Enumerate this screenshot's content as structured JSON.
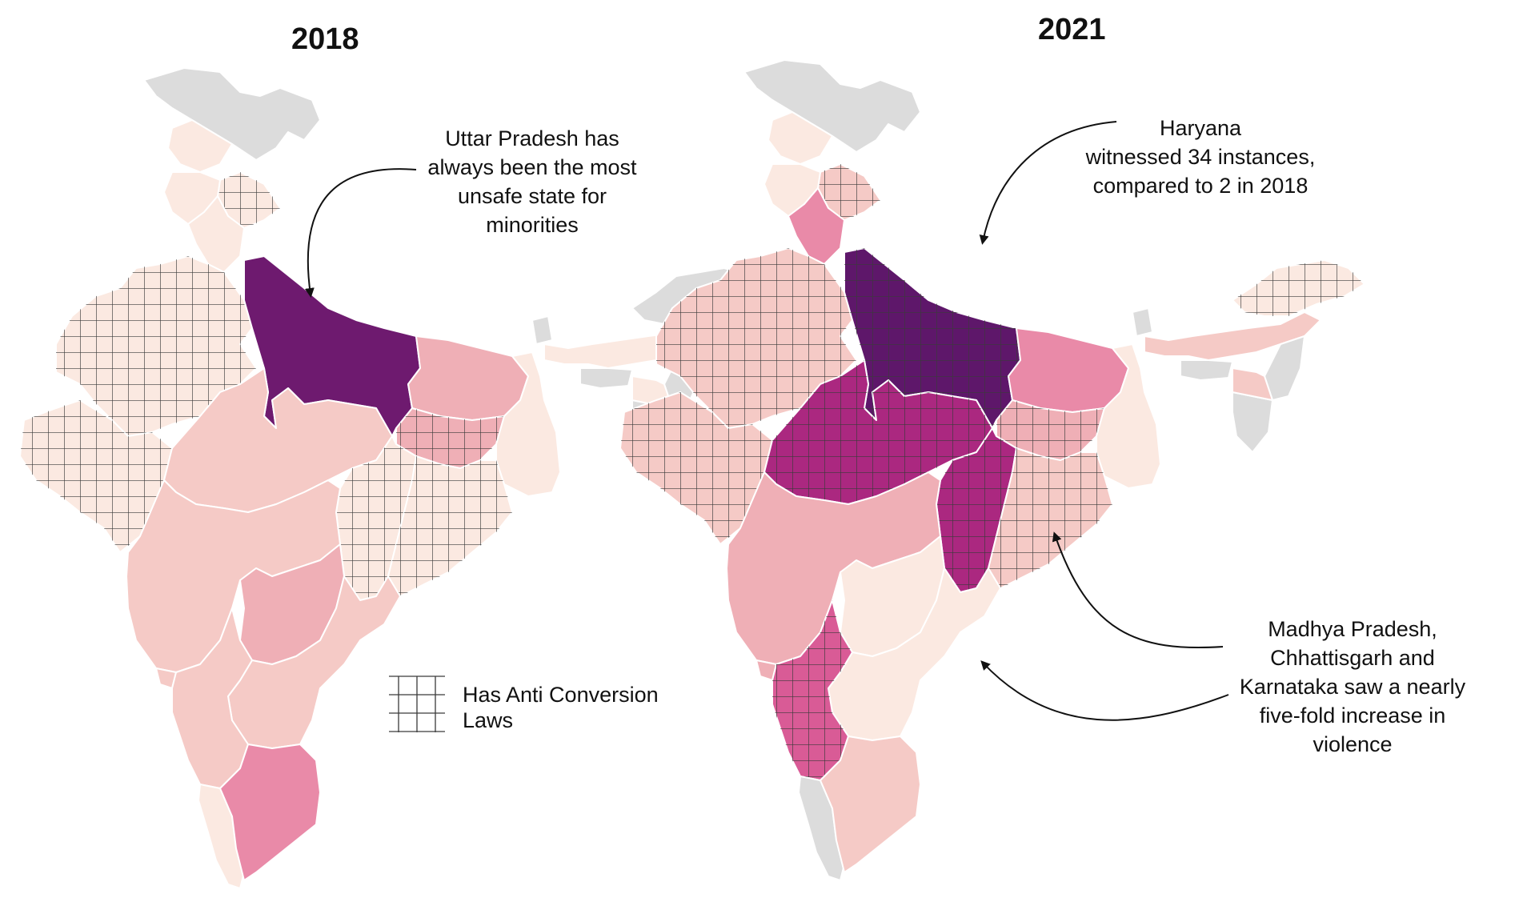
{
  "maps": [
    {
      "year": "2018"
    },
    {
      "year": "2021"
    }
  ],
  "annotations": {
    "up": [
      "Uttar Pradesh has",
      "always been the most",
      "unsafe state for",
      "minorities"
    ],
    "haryana": [
      "Haryana",
      "witnessed 34 instances,",
      "compared to 2 in 2018"
    ],
    "mp": [
      "Madhya Pradesh,",
      "Chhattisgarh and",
      "Karnataka saw a nearly",
      "five-fold increase in",
      "violence"
    ]
  },
  "legend": {
    "lines": [
      "Has Anti Conversion",
      "Laws"
    ],
    "pattern": "grid-hatch"
  },
  "colors": {
    "no_data": "#dcdcdc",
    "level_1": "#fbe9e1",
    "level_2": "#f5cac6",
    "level_3": "#efafb6",
    "level_4": "#e98aa8",
    "level_5": "#d95b96",
    "level_6": "#ab2880",
    "level_7": "#6e1a6f",
    "level_8": "#5e176a"
  }
}
